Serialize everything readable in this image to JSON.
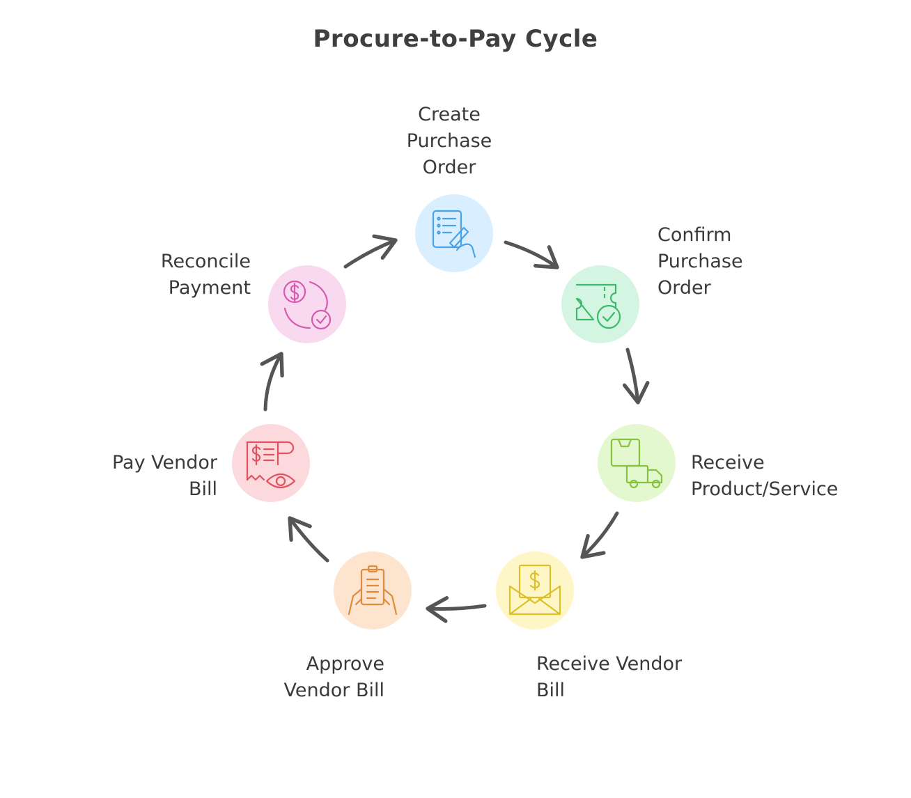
{
  "title": "Procure-to-Pay Cycle",
  "steps": [
    {
      "lines": [
        "Create",
        "Purchase",
        "Order"
      ],
      "icon": "document-pen-icon",
      "fill": "#d9efff",
      "stroke": "#4aa3e6"
    },
    {
      "lines": [
        "Confirm",
        "Purchase",
        "Order"
      ],
      "icon": "ticket-check-icon",
      "fill": "#d4f5e1",
      "stroke": "#3cb96b"
    },
    {
      "lines": [
        "Receive",
        "Product/Service"
      ],
      "icon": "box-truck-icon",
      "fill": "#e3f8cf",
      "stroke": "#86c240"
    },
    {
      "lines": [
        "Receive Vendor",
        "Bill"
      ],
      "icon": "envelope-dollar-icon",
      "fill": "#fff6c7",
      "stroke": "#dcc02a"
    },
    {
      "lines": [
        "Approve",
        "Vendor Bill"
      ],
      "icon": "hands-clipboard-icon",
      "fill": "#fde4ce",
      "stroke": "#e08a3c"
    },
    {
      "lines": [
        "Pay Vendor",
        "Bill"
      ],
      "icon": "receipt-eye-icon",
      "fill": "#fbd9dc",
      "stroke": "#e0525f"
    },
    {
      "lines": [
        "Reconcile",
        "Payment"
      ],
      "icon": "coin-refresh-check-icon",
      "fill": "#f9d9f0",
      "stroke": "#d65aae"
    }
  ],
  "arrow_color": "#555555"
}
